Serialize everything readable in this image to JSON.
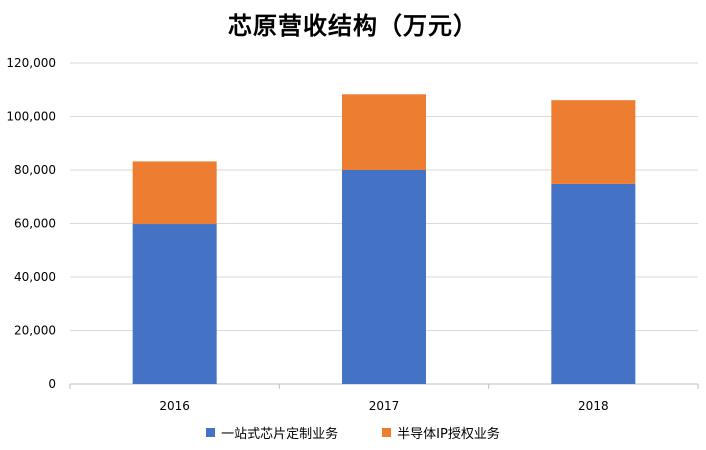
{
  "chart_data": {
    "type": "bar",
    "stacked": true,
    "title": "芯原营收结构（万元）",
    "xlabel": "",
    "ylabel": "",
    "categories": [
      "2016",
      "2017",
      "2018"
    ],
    "series": [
      {
        "name": "一站式芯片定制业务",
        "color": "#4472C4",
        "values": [
          59800,
          80000,
          74800
        ]
      },
      {
        "name": "半导体IP授权业务",
        "color": "#ED7D31",
        "values": [
          23400,
          28300,
          31300
        ]
      }
    ],
    "ylim": [
      0,
      120000
    ],
    "yticks": [
      "0",
      "20,000",
      "40,000",
      "60,000",
      "80,000",
      "100,000",
      "120,000"
    ],
    "grid": true,
    "legend_position": "bottom"
  }
}
